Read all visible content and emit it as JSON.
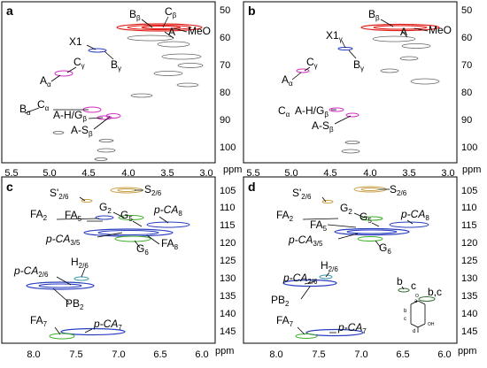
{
  "figure": {
    "panels": [
      {
        "label": "a",
        "x_ticks": [
          "5.5",
          "5.0",
          "4.5",
          "4.0",
          "3.5",
          "3.0"
        ],
        "x_unit": "ppm",
        "y_ticks": [
          "50",
          "60",
          "70",
          "80",
          "90",
          "100"
        ],
        "annotations": [
          {
            "base": "B",
            "sub": "β"
          },
          {
            "base": "C",
            "sub": "β"
          },
          {
            "base": "MeO",
            "sub": ""
          },
          {
            "base": "A",
            "sub": ""
          },
          {
            "base": "X1",
            "sub": ""
          },
          {
            "base": "B",
            "sub": "γ"
          },
          {
            "base": "C",
            "sub": "γ"
          },
          {
            "base": "A",
            "sub": "α"
          },
          {
            "base": "B",
            "sub": "α"
          },
          {
            "base": "C",
            "sub": "α"
          },
          {
            "base": "A-H/G",
            "sub": "β"
          },
          {
            "base": "A-S",
            "sub": "β"
          }
        ]
      },
      {
        "label": "b",
        "x_ticks": [
          "5.5",
          "5.0",
          "4.5",
          "4.0",
          "3.5",
          "3.0"
        ],
        "x_unit": "ppm",
        "y_ticks": [
          "50",
          "60",
          "70",
          "80",
          "90",
          "100"
        ],
        "annotations": [
          {
            "base": "B",
            "sub": "β"
          },
          {
            "base": "MeO",
            "sub": ""
          },
          {
            "base": "A",
            "sub": ""
          },
          {
            "base": "X1",
            "sub": "γ"
          },
          {
            "base": "B",
            "sub": "γ"
          },
          {
            "base": "C",
            "sub": "γ"
          },
          {
            "base": "A",
            "sub": "α"
          },
          {
            "base": "C",
            "sub": "α"
          },
          {
            "base": "A-H/G",
            "sub": "β"
          },
          {
            "base": "A-S",
            "sub": "β"
          }
        ]
      },
      {
        "label": "c",
        "x_ticks": [
          "8.0",
          "7.5",
          "7.0",
          "6.5",
          "6.0"
        ],
        "x_unit": "ppm",
        "y_ticks": [
          "105",
          "110",
          "115",
          "120",
          "125",
          "130",
          "135",
          "140",
          "145"
        ],
        "annotations": [
          {
            "base": "S'",
            "sub": "2/6"
          },
          {
            "base": "S",
            "sub": "2/6"
          },
          {
            "base": "FA",
            "sub": "2"
          },
          {
            "base": "FA",
            "sub": "5"
          },
          {
            "base": "G",
            "sub": "2"
          },
          {
            "base": "G",
            "sub": "5"
          },
          {
            "base": "p-CA",
            "sub": "8"
          },
          {
            "base": "p-CA",
            "sub": "3/5"
          },
          {
            "base": "FA",
            "sub": "8"
          },
          {
            "base": "G",
            "sub": "6"
          },
          {
            "base": "p-CA",
            "sub": "2/6"
          },
          {
            "base": "H",
            "sub": "2/6"
          },
          {
            "base": "PB",
            "sub": "2"
          },
          {
            "base": "FA",
            "sub": "7"
          },
          {
            "base": "p-CA",
            "sub": "7"
          }
        ]
      },
      {
        "label": "d",
        "x_ticks": [
          "8.0",
          "7.5",
          "7.0",
          "6.5",
          "6.0"
        ],
        "x_unit": "ppm",
        "y_ticks": [
          "105",
          "110",
          "115",
          "120",
          "125",
          "130",
          "135",
          "140",
          "145"
        ],
        "annotations": [
          {
            "base": "S'",
            "sub": "2/6"
          },
          {
            "base": "S",
            "sub": "2/6"
          },
          {
            "base": "FA",
            "sub": "2"
          },
          {
            "base": "FA",
            "sub": "5"
          },
          {
            "base": "G",
            "sub": "2"
          },
          {
            "base": "G",
            "sub": "5"
          },
          {
            "base": "p-CA",
            "sub": "8"
          },
          {
            "base": "p-CA",
            "sub": "3/5"
          },
          {
            "base": "G",
            "sub": "6"
          },
          {
            "base": "p-CA",
            "sub": "2/6"
          },
          {
            "base": "H",
            "sub": "2/6"
          },
          {
            "base": "PB",
            "sub": "2"
          },
          {
            "base": "FA",
            "sub": "7"
          },
          {
            "base": "p-CA",
            "sub": "7"
          },
          {
            "base": "b",
            "sub": ""
          },
          {
            "base": "c",
            "sub": ""
          },
          {
            "base": "b,c",
            "sub": ""
          },
          {
            "base": "d",
            "sub": ""
          }
        ],
        "structure_letters": [
          "a",
          "b",
          "c",
          "d",
          "O",
          "OH"
        ]
      }
    ],
    "colors": {
      "red": "#e0201a",
      "magenta": "#d030c0",
      "blue": "#2a3ec0",
      "green": "#3fae2a",
      "tan": "#c9a24a",
      "teal": "#3a9aa0",
      "gray": "#666666",
      "darkgreen": "#2f6b2f"
    }
  }
}
